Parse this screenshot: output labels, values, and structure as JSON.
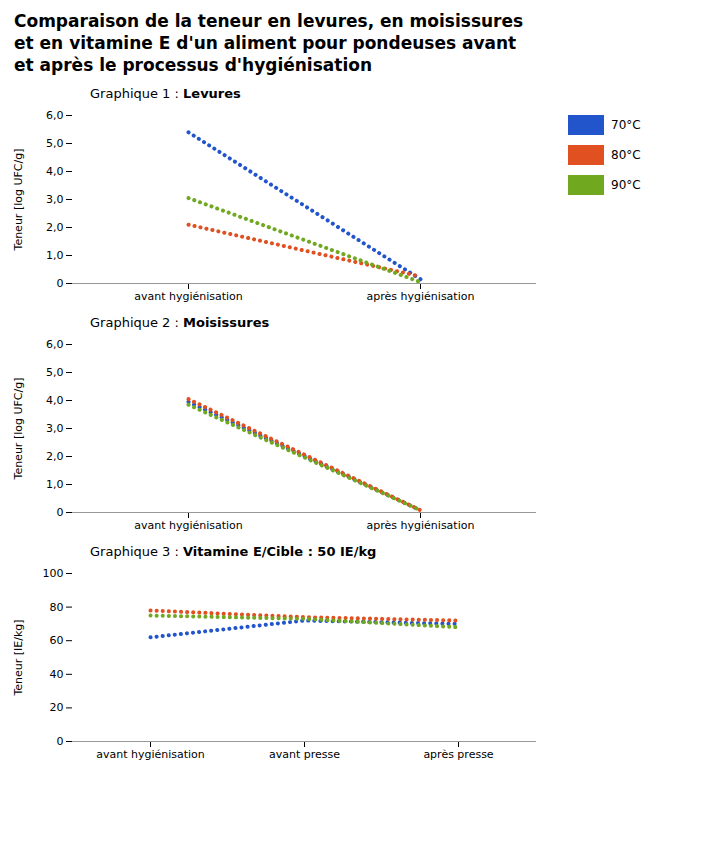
{
  "title": "Comparaison de la teneur en levures, en moisissures\net en vitamine E d'un aliment pour pondeuses avant\net après le processus d'hygiénisation",
  "chart_data": [
    {
      "type": "line",
      "title": "Graphique 1 : Levures",
      "ylabel": "Teneur [log UFC/g]",
      "categories": [
        "avant hygiénisation",
        "après hygiénisation"
      ],
      "series": [
        {
          "name": "70°C",
          "color": "#2255cc",
          "values": [
            5.4,
            0.15
          ]
        },
        {
          "name": "80°C",
          "color": "#e05020",
          "values": [
            2.1,
            0.25
          ]
        },
        {
          "name": "90°C",
          "color": "#70a820",
          "values": [
            3.05,
            0.05
          ]
        }
      ],
      "ylim": [
        0,
        6.0
      ],
      "yticks": [
        0,
        {
          "value": 1.0,
          "label": "1,0"
        },
        {
          "value": 2.0,
          "label": "2,0"
        },
        {
          "value": 3.0,
          "label": "3,0"
        },
        {
          "value": 4.0,
          "label": "4,0"
        },
        {
          "value": 5.0,
          "label": "5,0"
        },
        {
          "value": 6.0,
          "label": "6,0"
        }
      ],
      "line_style": "dotted",
      "grid": false,
      "legend": "right"
    },
    {
      "type": "line",
      "title": "Graphique 2 : Moisissures",
      "ylabel": "Teneur [log UFC/g]",
      "categories": [
        "avant hygiénisation",
        "après hygiénisation"
      ],
      "series": [
        {
          "name": "70°C",
          "color": "#2255cc",
          "values": [
            3.95,
            0.08
          ]
        },
        {
          "name": "80°C",
          "color": "#e05020",
          "values": [
            4.05,
            0.08
          ]
        },
        {
          "name": "90°C",
          "color": "#70a820",
          "values": [
            3.85,
            0.08
          ]
        }
      ],
      "ylim": [
        0,
        6.0
      ],
      "yticks": [
        0,
        {
          "value": 1.0,
          "label": "1,0"
        },
        {
          "value": 2.0,
          "label": "2,0"
        },
        {
          "value": 3.0,
          "label": "3,0"
        },
        {
          "value": 4.0,
          "label": "4,0"
        },
        {
          "value": 5.0,
          "label": "5,0"
        },
        {
          "value": 6.0,
          "label": "6,0"
        }
      ],
      "line_style": "dotted",
      "grid": false
    },
    {
      "type": "line",
      "title": "Graphique 3 : Vitamine E/Cible : 50 IE/kg",
      "ylabel": "Teneur [IE/kg]",
      "categories": [
        "avant hygiénisation",
        "avant presse",
        "après presse"
      ],
      "series": [
        {
          "name": "70°C",
          "color": "#2255cc",
          "values": [
            62,
            72,
            70
          ]
        },
        {
          "name": "80°C",
          "color": "#e05020",
          "values": [
            78,
            74,
            72
          ]
        },
        {
          "name": "90°C",
          "color": "#70a820",
          "values": [
            75,
            73,
            68
          ]
        }
      ],
      "ylim": [
        0,
        100
      ],
      "yticks": [
        0,
        20,
        40,
        60,
        80,
        100
      ],
      "line_style": "dotted",
      "grid": false
    }
  ]
}
